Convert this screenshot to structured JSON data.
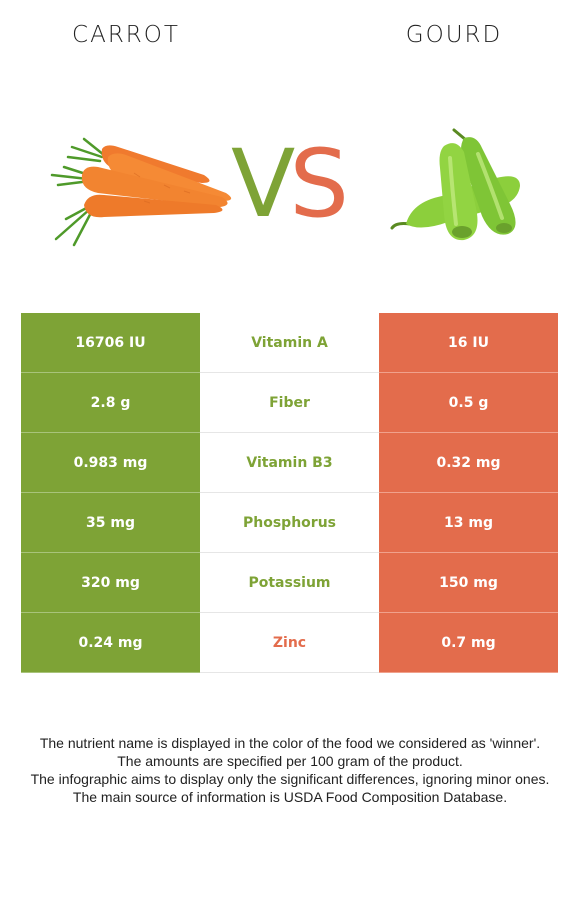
{
  "header": {
    "left_food": "CARROT",
    "right_food": "GOURD",
    "vs_v": "V",
    "vs_s": "S"
  },
  "colors": {
    "left_winner": "#7ea336",
    "right_winner": "#e36c4c"
  },
  "images": {
    "left": "carrot-illustration",
    "right": "gourd-illustration"
  },
  "rows": [
    {
      "left": "16706 IU",
      "nutrient": "Vitamin A",
      "right": "16 IU",
      "winner": "left"
    },
    {
      "left": "2.8 g",
      "nutrient": "Fiber",
      "right": "0.5 g",
      "winner": "left"
    },
    {
      "left": "0.983 mg",
      "nutrient": "Vitamin B3",
      "right": "0.32 mg",
      "winner": "left"
    },
    {
      "left": "35 mg",
      "nutrient": "Phosphorus",
      "right": "13 mg",
      "winner": "left"
    },
    {
      "left": "320 mg",
      "nutrient": "Potassium",
      "right": "150 mg",
      "winner": "left"
    },
    {
      "left": "0.24 mg",
      "nutrient": "Zinc",
      "right": "0.7 mg",
      "winner": "right"
    }
  ],
  "notes": [
    "The nutrient name is displayed in the color of the food we considered as 'winner'.",
    "The amounts are specified per 100 gram of the product.",
    "The infographic aims to display only the significant differences, ignoring minor ones.",
    "The main source of information is USDA Food Composition Database."
  ]
}
